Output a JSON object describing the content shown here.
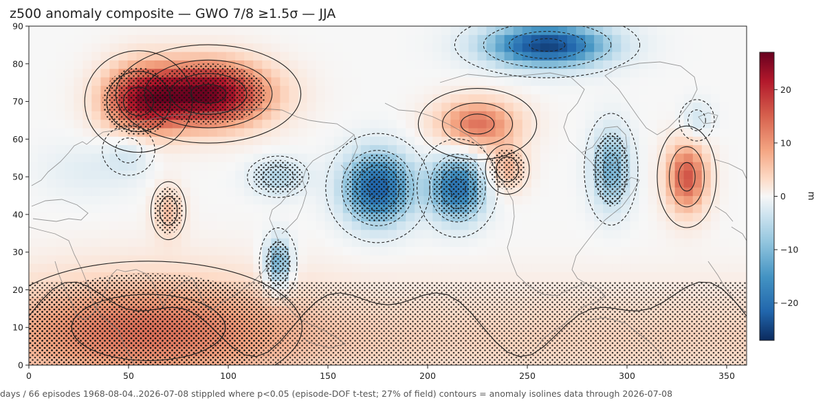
{
  "chart_data": {
    "type": "heatmap",
    "title": "z500 anomaly composite — GWO 7/8 ≥1.5σ — JJA",
    "xlabel": "",
    "ylabel": "",
    "xlim": [
      0,
      360
    ],
    "ylim": [
      0,
      90
    ],
    "x_ticks": [
      0,
      50,
      100,
      150,
      200,
      250,
      300,
      350
    ],
    "y_ticks": [
      0,
      10,
      20,
      30,
      40,
      50,
      60,
      70,
      80,
      90
    ],
    "colorbar": {
      "label": "m",
      "range": [
        -27,
        27
      ],
      "ticks": [
        20,
        10,
        0,
        -10,
        -20
      ],
      "tick_labels": [
        "20",
        "10",
        "0",
        "−10",
        "−20"
      ],
      "colormap": "RdBu_r",
      "colors": [
        "#0b2a5e",
        "#2166ac",
        "#4393c3",
        "#92c5de",
        "#d1e5f0",
        "#f7f7f7",
        "#fddbc7",
        "#f4a582",
        "#d6604d",
        "#b2182b",
        "#67001f"
      ]
    },
    "anomaly_centers": [
      {
        "lon": 90,
        "lat": 72,
        "value": 26,
        "sign": "positive",
        "stippled": true
      },
      {
        "lon": 55,
        "lat": 70,
        "value": 17,
        "sign": "positive",
        "stippled": true
      },
      {
        "lon": 225,
        "lat": 64,
        "value": 15,
        "sign": "positive",
        "stippled": false
      },
      {
        "lon": 240,
        "lat": 52,
        "value": 9,
        "sign": "positive",
        "stippled": true
      },
      {
        "lon": 330,
        "lat": 50,
        "value": 17,
        "sign": "positive",
        "stippled": false
      },
      {
        "lon": 70,
        "lat": 41,
        "value": 8,
        "sign": "positive",
        "stippled": true
      },
      {
        "lon": 60,
        "lat": 10,
        "value": 9,
        "sign": "positive",
        "stippled": true
      },
      {
        "lon": 175,
        "lat": 47,
        "value": -22,
        "sign": "negative",
        "stippled": true
      },
      {
        "lon": 215,
        "lat": 47,
        "value": -20,
        "sign": "negative",
        "stippled": true
      },
      {
        "lon": 260,
        "lat": 85,
        "value": -25,
        "sign": "negative",
        "stippled": false
      },
      {
        "lon": 292,
        "lat": 52,
        "value": -13,
        "sign": "negative",
        "stippled": true
      },
      {
        "lon": 125,
        "lat": 50,
        "value": -8,
        "sign": "negative",
        "stippled": true
      },
      {
        "lon": 125,
        "lat": 27,
        "value": -15,
        "sign": "negative",
        "stippled": true
      },
      {
        "lon": 50,
        "lat": 57,
        "value": -6,
        "sign": "negative",
        "stippled": false
      },
      {
        "lon": 335,
        "lat": 65,
        "value": -6,
        "sign": "negative",
        "stippled": false
      }
    ],
    "stippling": "p<0.05 (episode-DOF t-test; 27% of field)",
    "contours": "anomaly isolines",
    "grid": false
  },
  "footer": {
    "text": "days / 66 episodes   1968-08-04..2026-07-08   stippled where p<0.05 (episode-DOF t-test; 27% of field)   contours = anomaly isolines   data through 2026-07-08"
  }
}
